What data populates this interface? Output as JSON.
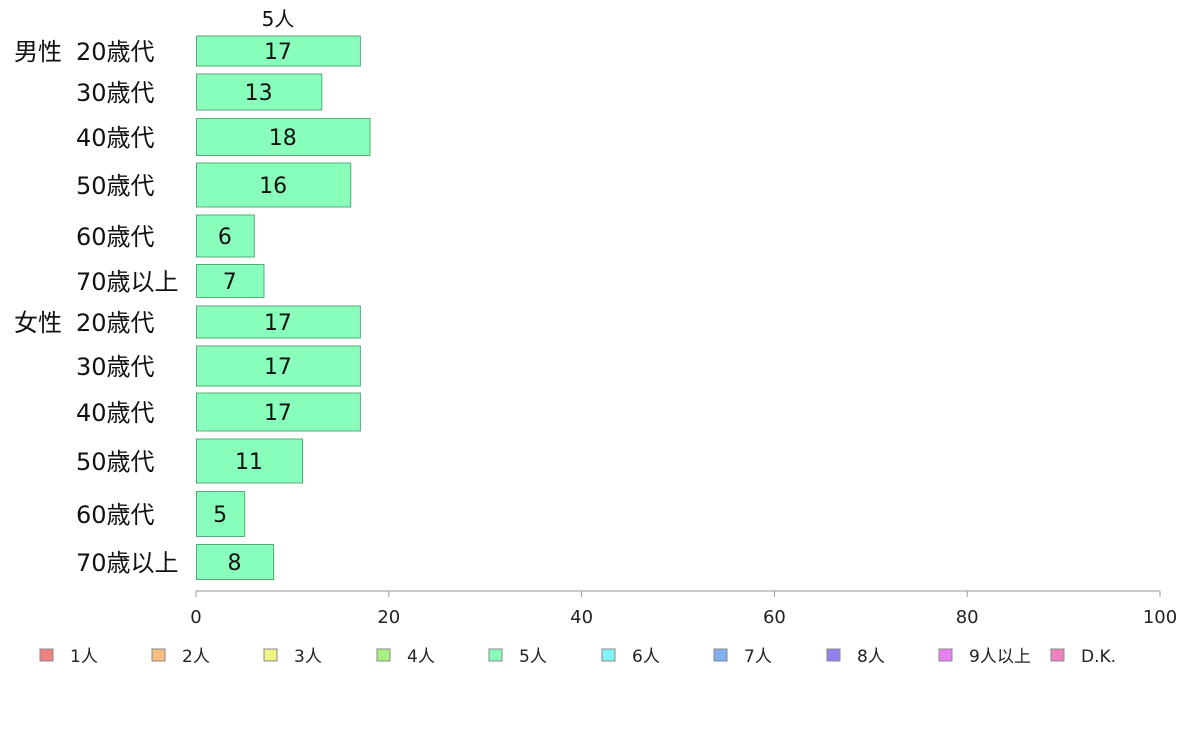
{
  "chart_data": {
    "type": "bar",
    "orientation": "horizontal",
    "stacked": true,
    "series_label_top": "5人",
    "groups": [
      {
        "name": "男性",
        "categories": [
          "20歳代",
          "30歳代",
          "40歳代",
          "50歳代",
          "60歳代",
          "70歳以上"
        ]
      },
      {
        "name": "女性",
        "categories": [
          "20歳代",
          "30歳代",
          "40歳代",
          "50歳代",
          "60歳代",
          "70歳以上"
        ]
      }
    ],
    "series": [
      {
        "name": "5人",
        "values": [
          17,
          13,
          18,
          16,
          6,
          7,
          17,
          17,
          17,
          11,
          5,
          8
        ]
      }
    ],
    "xlim": [
      0,
      100
    ],
    "xticks": [
      0,
      20,
      40,
      60,
      80,
      100
    ],
    "legend": {
      "placement": "bottom",
      "entries": [
        {
          "label": "1人",
          "color": "#f08080"
        },
        {
          "label": "2人",
          "color": "#f5c080"
        },
        {
          "label": "3人",
          "color": "#eef580"
        },
        {
          "label": "4人",
          "color": "#a8f080"
        },
        {
          "label": "5人",
          "color": "#88ffbb"
        },
        {
          "label": "6人",
          "color": "#80f5f5"
        },
        {
          "label": "7人",
          "color": "#80b0f0"
        },
        {
          "label": "8人",
          "color": "#9080f0"
        },
        {
          "label": "9人以上",
          "color": "#e880f5"
        },
        {
          "label": "D.K.",
          "color": "#f080c0"
        }
      ]
    },
    "grid": false
  }
}
